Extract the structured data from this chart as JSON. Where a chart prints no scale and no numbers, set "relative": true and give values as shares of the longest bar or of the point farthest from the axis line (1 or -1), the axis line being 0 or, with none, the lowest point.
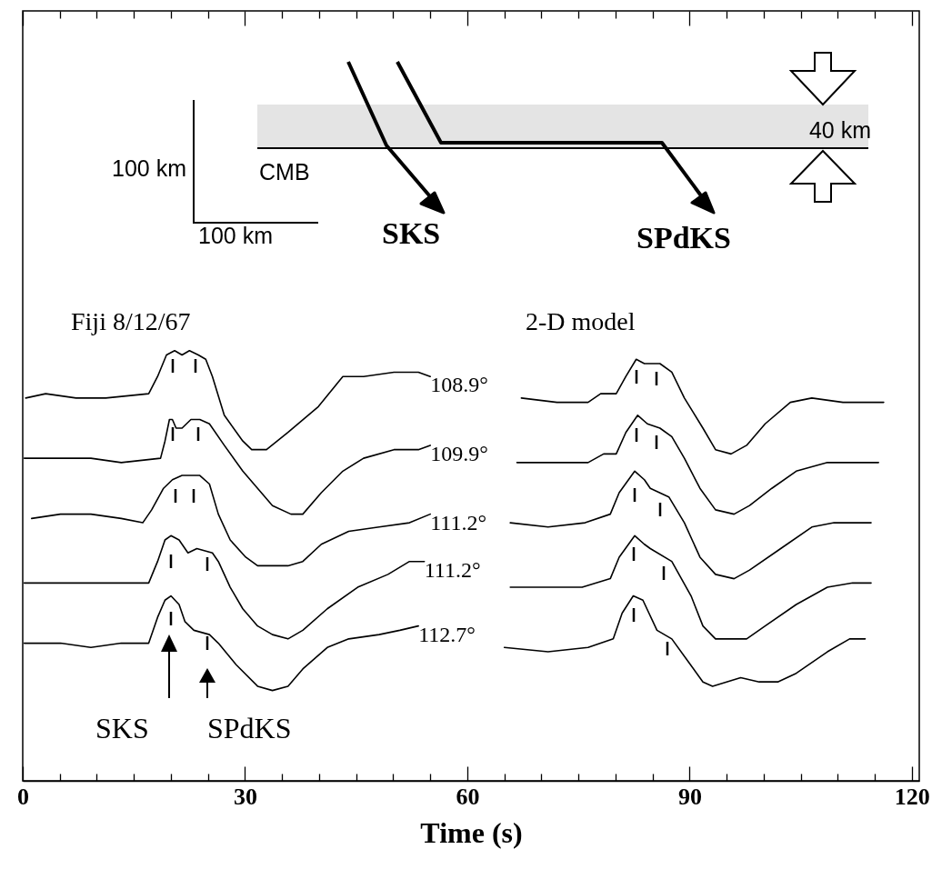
{
  "chart_data": {
    "type": "line",
    "relative": true,
    "tick_labels": "x",
    "xlabel": "Time (s)",
    "xlim": [
      0,
      121
    ],
    "xticks": [
      0,
      {
        "value": 5,
        "label": null
      },
      {
        "value": 10,
        "label": null
      },
      {
        "value": 15,
        "label": null
      },
      {
        "value": 20,
        "label": null
      },
      {
        "value": 25,
        "label": null
      },
      30,
      {
        "value": 35,
        "label": null
      },
      {
        "value": 40,
        "label": null
      },
      {
        "value": 45,
        "label": null
      },
      {
        "value": 50,
        "label": null
      },
      {
        "value": 55,
        "label": null
      },
      60,
      {
        "value": 65,
        "label": null
      },
      {
        "value": 70,
        "label": null
      },
      {
        "value": 75,
        "label": null
      },
      {
        "value": 80,
        "label": null
      },
      {
        "value": 85,
        "label": null
      },
      90,
      {
        "value": 95,
        "label": null
      },
      {
        "value": 100,
        "label": null
      },
      {
        "value": 105,
        "label": null
      },
      {
        "value": 110,
        "label": null
      },
      {
        "value": 115,
        "label": null
      },
      120
    ],
    "annotations": [
      "Fiji 8/12/67",
      "2-D model",
      "SKS",
      "SPdKS",
      "100 km",
      "100 km",
      "CMB",
      "40 km",
      "SKS",
      "SPdKS"
    ],
    "series": [
      {
        "name": "108.9°",
        "color": "#000000",
        "x": [
          0.4,
          3.1,
          7.2,
          11.2,
          17.0,
          18.2,
          19.4,
          20.5,
          21.5,
          22.5,
          23.7,
          24.7,
          25.6,
          27.2,
          29.7,
          30.9,
          32.9,
          35.8,
          39.9,
          43.2,
          46.0,
          50.1,
          53.4,
          55.0
        ],
        "values": [
          0.89,
          0.9,
          0.89,
          0.89,
          0.9,
          0.94,
          0.99,
          1,
          0.99,
          1.0,
          0.99,
          0.98,
          0.94,
          0.85,
          0.79,
          0.77,
          0.77,
          0.81,
          0.87,
          0.94,
          0.94,
          0.95,
          0.95,
          0.94
        ]
      },
      {
        "name": "109.9°",
        "color": "#000000",
        "x": [
          0.2,
          5.1,
          9.2,
          13.3,
          18.6,
          19.2,
          19.8,
          20.2,
          20.7,
          21.5,
          22.7,
          23.9,
          25.2,
          27.2,
          29.7,
          31.7,
          33.7,
          36.2,
          37.8,
          40.3,
          43.2,
          46.0,
          50.1,
          53.4,
          55.0
        ],
        "values": [
          0.75,
          0.75,
          0.75,
          0.74,
          0.75,
          0.79,
          0.84,
          0.84,
          0.82,
          0.82,
          0.84,
          0.84,
          0.83,
          0.78,
          0.72,
          0.68,
          0.64,
          0.62,
          0.62,
          0.67,
          0.72,
          0.75,
          0.77,
          0.77,
          0.78
        ]
      },
      {
        "name": "111.2°",
        "color": "#000000",
        "x": [
          1.2,
          5.1,
          9.2,
          13.3,
          16.2,
          17.4,
          19.0,
          20.2,
          21.5,
          23.9,
          25.2,
          26.4,
          28.0,
          30.1,
          31.7,
          35.8,
          37.8,
          40.3,
          44.0,
          48.1,
          52.2,
          55.0
        ],
        "values": [
          0.61,
          0.62,
          0.62,
          0.61,
          0.6,
          0.63,
          0.68,
          0.7,
          0.71,
          0.71,
          0.69,
          0.62,
          0.56,
          0.52,
          0.5,
          0.5,
          0.51,
          0.55,
          0.58,
          0.59,
          0.6,
          0.62
        ]
      },
      {
        "name": "111.2°",
        "color": "#000000",
        "x": [
          0.2,
          5.1,
          9.2,
          13.3,
          17.0,
          18.2,
          19.2,
          20.0,
          21.1,
          22.3,
          23.5,
          25.6,
          26.4,
          28.0,
          29.7,
          31.7,
          33.7,
          35.8,
          37.8,
          41.1,
          45.2,
          49.3,
          52.2,
          53.4,
          54.2
        ],
        "values": [
          0.46,
          0.46,
          0.46,
          0.46,
          0.46,
          0.51,
          0.56,
          0.57,
          0.56,
          0.53,
          0.54,
          0.53,
          0.51,
          0.45,
          0.4,
          0.36,
          0.34,
          0.33,
          0.35,
          0.4,
          0.45,
          0.48,
          0.51,
          0.51,
          0.51
        ]
      },
      {
        "name": "112.7°",
        "color": "#000000",
        "x": [
          0.2,
          5.1,
          9.2,
          13.3,
          17.0,
          18.2,
          19.2,
          20.0,
          21.1,
          21.9,
          23.1,
          25.2,
          26.4,
          28.8,
          31.7,
          33.7,
          35.8,
          37.8,
          41.1,
          44.0,
          48.1,
          50.9,
          53.4
        ],
        "values": [
          0.32,
          0.32,
          0.31,
          0.32,
          0.32,
          0.38,
          0.42,
          0.43,
          0.41,
          0.37,
          0.35,
          0.34,
          0.32,
          0.27,
          0.22,
          0.21,
          0.22,
          0.26,
          0.31,
          0.33,
          0.34,
          0.35,
          0.36
        ]
      },
      {
        "color": "#000000",
        "x": [
          67.3,
          72.1,
          76.3,
          78.0,
          80.1,
          81.4,
          82.8,
          83.9,
          86.0,
          87.6,
          89.3,
          91.8,
          93.5,
          95.6,
          97.7,
          100.2,
          103.6,
          106.5,
          110.7,
          112.8,
          116.2
        ],
        "values": [
          0.89,
          0.88,
          0.88,
          0.9,
          0.9,
          0.94,
          0.98,
          0.97,
          0.97,
          0.95,
          0.89,
          0.82,
          0.77,
          0.76,
          0.78,
          0.83,
          0.88,
          0.89,
          0.88,
          0.88,
          0.88
        ]
      },
      {
        "color": "#000000",
        "x": [
          66.7,
          71.7,
          76.3,
          78.4,
          80.1,
          81.4,
          83.0,
          84.3,
          86.0,
          87.6,
          89.3,
          91.4,
          93.5,
          96.0,
          98.1,
          101.1,
          104.4,
          108.6,
          112.8,
          115.5
        ],
        "values": [
          0.74,
          0.74,
          0.74,
          0.76,
          0.76,
          0.81,
          0.85,
          0.83,
          0.82,
          0.8,
          0.75,
          0.68,
          0.63,
          0.62,
          0.64,
          0.68,
          0.72,
          0.74,
          0.74,
          0.74
        ]
      },
      {
        "color": "#000000",
        "x": [
          65.8,
          70.9,
          75.9,
          79.3,
          80.5,
          82.6,
          83.9,
          84.7,
          87.2,
          89.3,
          91.4,
          93.5,
          96.0,
          98.1,
          102.3,
          106.5,
          109.5,
          114.5
        ],
        "values": [
          0.6,
          0.59,
          0.6,
          0.62,
          0.67,
          0.72,
          0.7,
          0.68,
          0.66,
          0.6,
          0.52,
          0.48,
          0.47,
          0.49,
          0.54,
          0.59,
          0.6,
          0.6
        ]
      },
      {
        "color": "#000000",
        "x": [
          65.8,
          70.9,
          75.5,
          79.3,
          80.5,
          82.6,
          83.9,
          84.7,
          87.6,
          90.2,
          91.8,
          93.5,
          97.7,
          100.2,
          104.4,
          108.6,
          112.0,
          114.5
        ],
        "values": [
          0.45,
          0.45,
          0.45,
          0.47,
          0.52,
          0.57,
          0.55,
          0.54,
          0.51,
          0.43,
          0.36,
          0.33,
          0.33,
          0.36,
          0.41,
          0.45,
          0.46,
          0.46
        ]
      },
      {
        "color": "#000000",
        "x": [
          65.0,
          70.9,
          76.3,
          78.0,
          79.7,
          80.9,
          82.4,
          83.7,
          85.6,
          87.6,
          89.7,
          91.8,
          93.1,
          96.9,
          99.4,
          101.9,
          104.4,
          108.6,
          111.6,
          113.7
        ],
        "values": [
          0.31,
          0.3,
          0.31,
          0.32,
          0.33,
          0.39,
          0.43,
          0.42,
          0.35,
          0.33,
          0.28,
          0.23,
          0.22,
          0.24,
          0.23,
          0.23,
          0.25,
          0.3,
          0.33,
          0.33
        ]
      }
    ]
  }
}
